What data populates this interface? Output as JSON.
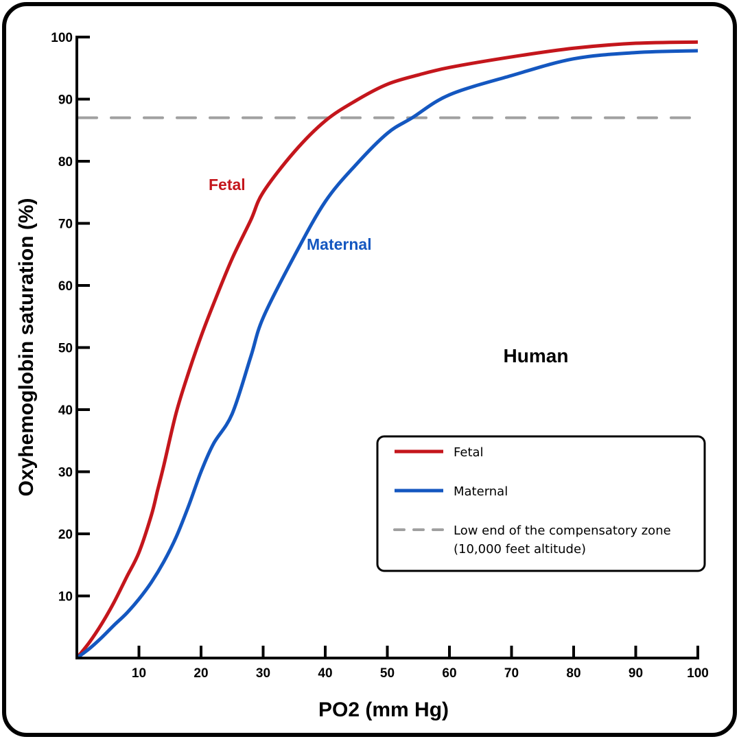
{
  "chart_data": {
    "type": "line",
    "title": "",
    "xlabel": "PO2 (mm Hg)",
    "ylabel": "Oxyhemoglobin saturation (%)",
    "xlim": [
      0,
      100
    ],
    "ylim": [
      0,
      100
    ],
    "x_ticks": [
      10,
      20,
      30,
      40,
      50,
      60,
      70,
      80,
      90,
      100
    ],
    "y_ticks": [
      10,
      20,
      30,
      40,
      50,
      60,
      70,
      80,
      90,
      100
    ],
    "grid": false,
    "annotation": "Human",
    "series": [
      {
        "name": "Fetal",
        "color": "#c4161c",
        "x": [
          0,
          2,
          4,
          6,
          8,
          10,
          12,
          13,
          14,
          16,
          18,
          20,
          22,
          25,
          28,
          30,
          35,
          40,
          45,
          50,
          55,
          60,
          70,
          80,
          90,
          100
        ],
        "y": [
          0,
          2.5,
          5.5,
          9,
          13,
          17,
          23,
          27,
          31,
          39.5,
          46,
          51.8,
          57,
          64.3,
          70.5,
          75,
          81.5,
          86.5,
          89.8,
          92.4,
          93.9,
          95.1,
          96.8,
          98.2,
          99.0,
          99.2
        ]
      },
      {
        "name": "Maternal",
        "color": "#1457c0",
        "x": [
          0,
          2,
          4,
          6,
          8,
          10,
          12,
          14,
          16,
          18,
          20,
          22,
          25,
          28,
          30,
          35,
          40,
          45,
          50,
          54,
          60,
          70,
          80,
          90,
          100
        ],
        "y": [
          0,
          1.5,
          3.3,
          5.3,
          7.2,
          9.5,
          12.2,
          15.5,
          19.5,
          24.5,
          30,
          34.5,
          39.3,
          48.5,
          54.8,
          64.7,
          73.5,
          79.5,
          84.5,
          87.0,
          90.7,
          93.8,
          96.5,
          97.5,
          97.8
        ]
      },
      {
        "name": "Low end of the compensatory zone (10,000 feet altitude)",
        "color": "#a0a0a0",
        "style": "dashed",
        "x": [
          0,
          100
        ],
        "y": [
          87,
          87
        ]
      }
    ],
    "curve_labels": [
      {
        "text": "Fetal",
        "color": "#c4161c"
      },
      {
        "text": "Maternal",
        "color": "#1457c0"
      }
    ],
    "legend": {
      "position": "bottom-right",
      "entries": [
        {
          "label": "Fetal",
          "color": "#c4161c",
          "style": "solid"
        },
        {
          "label": "Maternal",
          "color": "#1457c0",
          "style": "solid"
        },
        {
          "label_line1": "Low end of the compensatory zone",
          "label_line2": "(10,000 feet altitude)",
          "color": "#a0a0a0",
          "style": "dashed"
        }
      ]
    }
  }
}
